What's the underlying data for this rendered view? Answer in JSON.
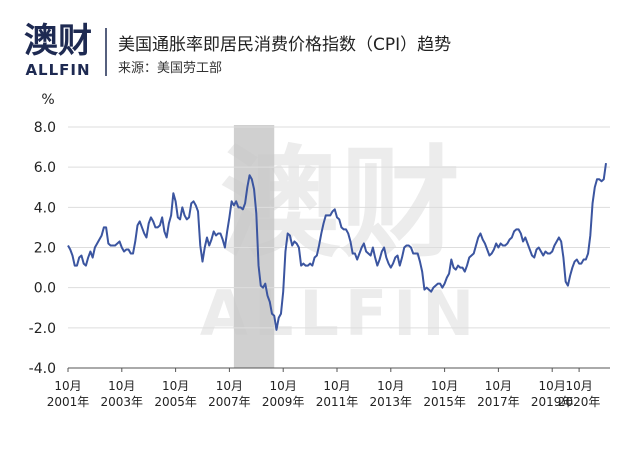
{
  "header": {
    "logo": "澳财",
    "logo_sub": "ALLFIN",
    "title": "美国通胀率即居民消费价格指数（CPI）趋势",
    "source": "来源：美国劳工部"
  },
  "chart_data": {
    "type": "line",
    "y_unit": "%",
    "ylim": [
      -4,
      8
    ],
    "yticks": [
      {
        "value": -4,
        "label": "-4.0"
      },
      {
        "value": -2,
        "label": "-2.0"
      },
      {
        "value": 0,
        "label": "0.0"
      },
      {
        "value": 2,
        "label": "2.0"
      },
      {
        "value": 4,
        "label": "4.0"
      },
      {
        "value": 6,
        "label": "6.0"
      },
      {
        "value": 8,
        "label": "8.0"
      }
    ],
    "xlim": [
      "2001-10",
      "2021-10"
    ],
    "xticks": [
      {
        "value": "2001-10",
        "label": "10月\n2001年"
      },
      {
        "value": "2003-10",
        "label": "10月\n2003年"
      },
      {
        "value": "2005-10",
        "label": "10月\n2005年"
      },
      {
        "value": "2007-10",
        "label": "10月\n2007年"
      },
      {
        "value": "2009-10",
        "label": "10月\n2009年"
      },
      {
        "value": "2011-10",
        "label": "10月\n2011年"
      },
      {
        "value": "2013-10",
        "label": "10月\n2013年"
      },
      {
        "value": "2015-10",
        "label": "10月\n2015年"
      },
      {
        "value": "2017-10",
        "label": "10月\n2017年"
      },
      {
        "value": "2019-10",
        "label": "10月\n2019年"
      },
      {
        "value": "2020-10",
        "label": "10月\n2020年"
      }
    ],
    "grid": true,
    "shaded": {
      "start": "2007-12",
      "end": "2009-06",
      "color": "#c8c8c8"
    },
    "x": [
      "2001-10",
      "2001-11",
      "2001-12",
      "2002-01",
      "2002-02",
      "2002-03",
      "2002-04",
      "2002-05",
      "2002-06",
      "2002-07",
      "2002-08",
      "2002-09",
      "2002-10",
      "2002-11",
      "2002-12",
      "2003-01",
      "2003-02",
      "2003-03",
      "2003-04",
      "2003-05",
      "2003-06",
      "2003-07",
      "2003-08",
      "2003-09",
      "2003-10",
      "2003-11",
      "2003-12",
      "2004-01",
      "2004-02",
      "2004-03",
      "2004-04",
      "2004-05",
      "2004-06",
      "2004-07",
      "2004-08",
      "2004-09",
      "2004-10",
      "2004-11",
      "2004-12",
      "2005-01",
      "2005-02",
      "2005-03",
      "2005-04",
      "2005-05",
      "2005-06",
      "2005-07",
      "2005-08",
      "2005-09",
      "2005-10",
      "2005-11",
      "2005-12",
      "2006-01",
      "2006-02",
      "2006-03",
      "2006-04",
      "2006-05",
      "2006-06",
      "2006-07",
      "2006-08",
      "2006-09",
      "2006-10",
      "2006-11",
      "2006-12",
      "2007-01",
      "2007-02",
      "2007-03",
      "2007-04",
      "2007-05",
      "2007-06",
      "2007-07",
      "2007-08",
      "2007-09",
      "2007-10",
      "2007-11",
      "2007-12",
      "2008-01",
      "2008-02",
      "2008-03",
      "2008-04",
      "2008-05",
      "2008-06",
      "2008-07",
      "2008-08",
      "2008-09",
      "2008-10",
      "2008-11",
      "2008-12",
      "2009-01",
      "2009-02",
      "2009-03",
      "2009-04",
      "2009-05",
      "2009-06",
      "2009-07",
      "2009-08",
      "2009-09",
      "2009-10",
      "2009-11",
      "2009-12",
      "2010-01",
      "2010-02",
      "2010-03",
      "2010-04",
      "2010-05",
      "2010-06",
      "2010-07",
      "2010-08",
      "2010-09",
      "2010-10",
      "2010-11",
      "2010-12",
      "2011-01",
      "2011-02",
      "2011-03",
      "2011-04",
      "2011-05",
      "2011-06",
      "2011-07",
      "2011-08",
      "2011-09",
      "2011-10",
      "2011-11",
      "2011-12",
      "2012-01",
      "2012-02",
      "2012-03",
      "2012-04",
      "2012-05",
      "2012-06",
      "2012-07",
      "2012-08",
      "2012-09",
      "2012-10",
      "2012-11",
      "2012-12",
      "2013-01",
      "2013-02",
      "2013-03",
      "2013-04",
      "2013-05",
      "2013-06",
      "2013-07",
      "2013-08",
      "2013-09",
      "2013-10",
      "2013-11",
      "2013-12",
      "2014-01",
      "2014-02",
      "2014-03",
      "2014-04",
      "2014-05",
      "2014-06",
      "2014-07",
      "2014-08",
      "2014-09",
      "2014-10",
      "2014-11",
      "2014-12",
      "2015-01",
      "2015-02",
      "2015-03",
      "2015-04",
      "2015-05",
      "2015-06",
      "2015-07",
      "2015-08",
      "2015-09",
      "2015-10",
      "2015-11",
      "2015-12",
      "2016-01",
      "2016-02",
      "2016-03",
      "2016-04",
      "2016-05",
      "2016-06",
      "2016-07",
      "2016-08",
      "2016-09",
      "2016-10",
      "2016-11",
      "2016-12",
      "2017-01",
      "2017-02",
      "2017-03",
      "2017-04",
      "2017-05",
      "2017-06",
      "2017-07",
      "2017-08",
      "2017-09",
      "2017-10",
      "2017-11",
      "2017-12",
      "2018-01",
      "2018-02",
      "2018-03",
      "2018-04",
      "2018-05",
      "2018-06",
      "2018-07",
      "2018-08",
      "2018-09",
      "2018-10",
      "2018-11",
      "2018-12",
      "2019-01",
      "2019-02",
      "2019-03",
      "2019-04",
      "2019-05",
      "2019-06",
      "2019-07",
      "2019-08",
      "2019-09",
      "2019-10",
      "2019-11",
      "2019-12",
      "2020-01",
      "2020-02",
      "2020-03",
      "2020-04",
      "2020-05",
      "2020-06",
      "2020-07",
      "2020-08",
      "2020-09",
      "2020-10",
      "2020-11",
      "2020-12",
      "2021-01",
      "2021-02",
      "2021-03",
      "2021-04",
      "2021-05",
      "2021-06",
      "2021-07",
      "2021-08",
      "2021-09",
      "2021-10"
    ],
    "series": [
      {
        "name": "CPI",
        "color": "#3b55a0",
        "values": [
          2.1,
          1.9,
          1.6,
          1.1,
          1.1,
          1.5,
          1.6,
          1.2,
          1.1,
          1.5,
          1.8,
          1.5,
          2.0,
          2.2,
          2.4,
          2.6,
          3.0,
          3.0,
          2.2,
          2.1,
          2.1,
          2.1,
          2.2,
          2.3,
          2.0,
          1.8,
          1.9,
          1.9,
          1.7,
          1.7,
          2.3,
          3.1,
          3.3,
          3.0,
          2.7,
          2.5,
          3.2,
          3.5,
          3.3,
          3.0,
          3.0,
          3.1,
          3.5,
          2.8,
          2.5,
          3.2,
          3.6,
          4.7,
          4.3,
          3.5,
          3.4,
          4.0,
          3.6,
          3.4,
          3.5,
          4.2,
          4.3,
          4.1,
          3.8,
          2.1,
          1.3,
          2.0,
          2.5,
          2.1,
          2.4,
          2.8,
          2.6,
          2.7,
          2.7,
          2.4,
          2.0,
          2.8,
          3.5,
          4.3,
          4.1,
          4.3,
          4.0,
          4.0,
          3.9,
          4.2,
          5.0,
          5.6,
          5.4,
          4.9,
          3.7,
          1.1,
          0.1,
          0.0,
          0.2,
          -0.4,
          -0.7,
          -1.3,
          -1.4,
          -2.1,
          -1.5,
          -1.3,
          -0.2,
          1.8,
          2.7,
          2.6,
          2.1,
          2.3,
          2.2,
          2.0,
          1.1,
          1.2,
          1.1,
          1.1,
          1.2,
          1.1,
          1.5,
          1.6,
          2.1,
          2.7,
          3.2,
          3.6,
          3.6,
          3.6,
          3.8,
          3.9,
          3.5,
          3.4,
          3.0,
          2.9,
          2.9,
          2.7,
          2.3,
          1.7,
          1.7,
          1.4,
          1.7,
          2.0,
          2.2,
          1.8,
          1.7,
          1.6,
          2.0,
          1.5,
          1.1,
          1.4,
          1.8,
          2.0,
          1.5,
          1.2,
          1.0,
          1.2,
          1.5,
          1.6,
          1.1,
          1.5,
          2.0,
          2.1,
          2.1,
          2.0,
          1.7,
          1.7,
          1.7,
          1.3,
          0.8,
          -0.1,
          0.0,
          -0.1,
          -0.2,
          0.0,
          0.1,
          0.2,
          0.2,
          0.0,
          0.2,
          0.5,
          0.7,
          1.4,
          1.0,
          0.9,
          1.1,
          1.0,
          1.0,
          0.8,
          1.1,
          1.5,
          1.6,
          1.7,
          2.1,
          2.5,
          2.7,
          2.4,
          2.2,
          1.9,
          1.6,
          1.7,
          1.9,
          2.2,
          2.0,
          2.2,
          2.1,
          2.1,
          2.2,
          2.4,
          2.5,
          2.8,
          2.9,
          2.9,
          2.7,
          2.3,
          2.5,
          2.2,
          1.9,
          1.6,
          1.5,
          1.9,
          2.0,
          1.8,
          1.6,
          1.8,
          1.7,
          1.7,
          1.8,
          2.1,
          2.3,
          2.5,
          2.3,
          1.5,
          0.3,
          0.1,
          0.6,
          1.0,
          1.3,
          1.4,
          1.2,
          1.2,
          1.4,
          1.4,
          1.7,
          2.6,
          4.2,
          5.0,
          5.4,
          5.4,
          5.3,
          5.4,
          6.2
        ]
      }
    ]
  }
}
